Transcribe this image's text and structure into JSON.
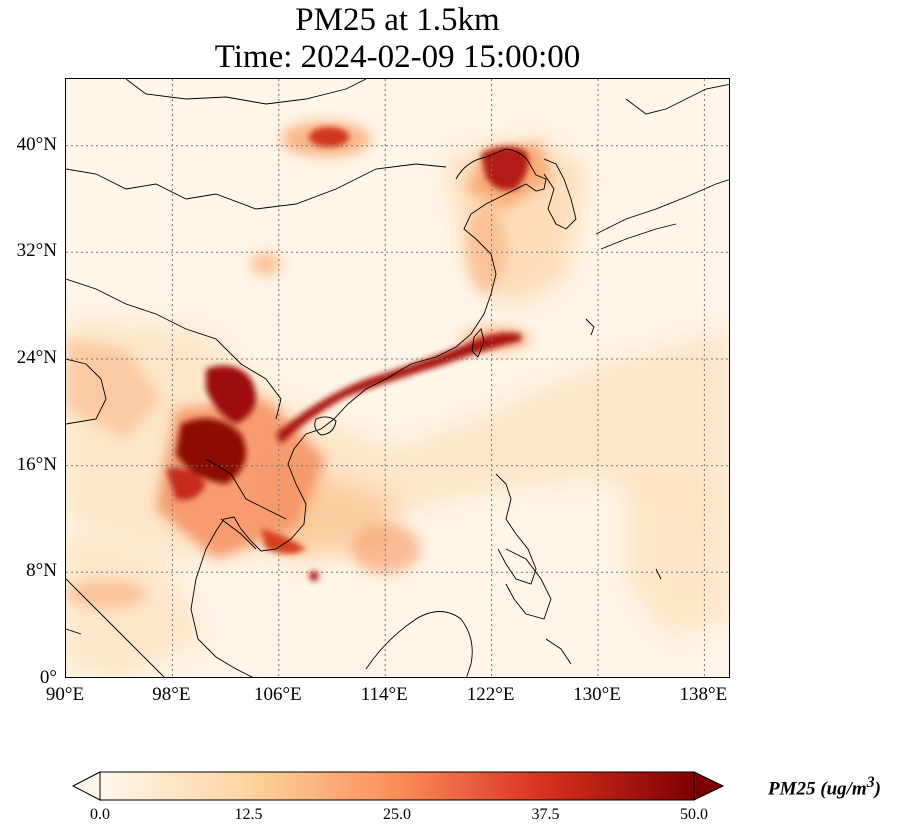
{
  "title": {
    "line1": "PM25 at 1.5km",
    "line2": "Time: 2024-02-09 15:00:00"
  },
  "map": {
    "lon_range": [
      90,
      140
    ],
    "lat_range": [
      0,
      45
    ],
    "x_ticks": [
      "90°E",
      "98°E",
      "106°E",
      "114°E",
      "122°E",
      "130°E",
      "138°E"
    ],
    "y_ticks": [
      "0°",
      "8°N",
      "16°N",
      "24°N",
      "32°N",
      "40°N"
    ],
    "gridlines": "dotted",
    "colormap": "OrRd"
  },
  "colorbar": {
    "label_main": "PM25 (ug/m",
    "label_sup": "3",
    "label_end": ")",
    "ticks": [
      "0.0",
      "12.5",
      "25.0",
      "37.5",
      "50.0"
    ],
    "range": [
      0,
      50
    ],
    "extend": "both",
    "colors": [
      "#fff7ec",
      "#fdd49e",
      "#fc8d59",
      "#d7301f",
      "#7f0000"
    ]
  }
}
